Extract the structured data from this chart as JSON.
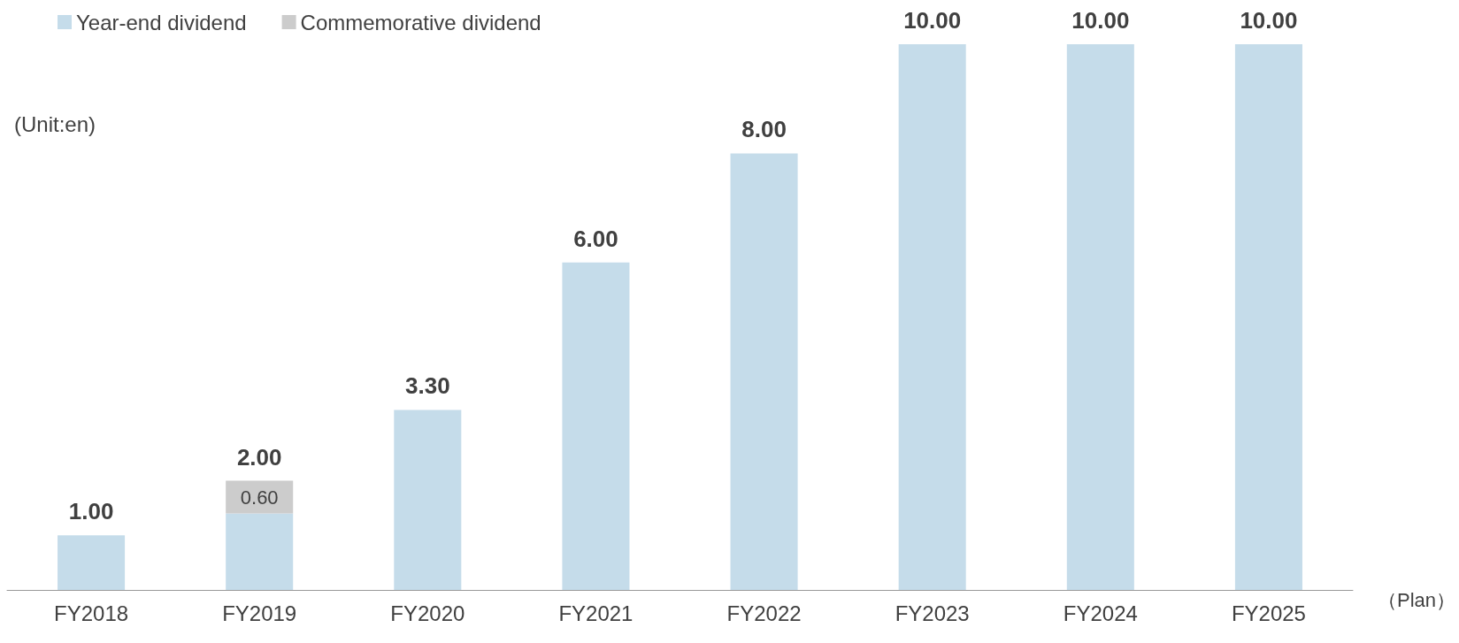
{
  "chart_data": {
    "type": "bar",
    "stacked": true,
    "categories": [
      "FY2018",
      "FY2019",
      "FY2020",
      "FY2021",
      "FY2022",
      "FY2023",
      "FY2024",
      "FY2025"
    ],
    "series": [
      {
        "name": "Year-end dividend",
        "color": "#c5dcea",
        "values": [
          1.0,
          1.4,
          3.3,
          6.0,
          8.0,
          10.0,
          10.0,
          10.0
        ]
      },
      {
        "name": "Commemorative dividend",
        "color": "#cccccc",
        "values": [
          null,
          0.6,
          null,
          null,
          null,
          null,
          null,
          null
        ],
        "value_labels": [
          null,
          "0.60",
          null,
          null,
          null,
          null,
          null,
          null
        ]
      }
    ],
    "totals": [
      "1.00",
      "2.00",
      "3.30",
      "6.00",
      "8.00",
      "10.00",
      "10.00",
      "10.00"
    ],
    "annotations": [
      "(Unit:en)",
      "（Plan）"
    ],
    "legend": "top left",
    "grid": false,
    "tick_labels": "x"
  }
}
